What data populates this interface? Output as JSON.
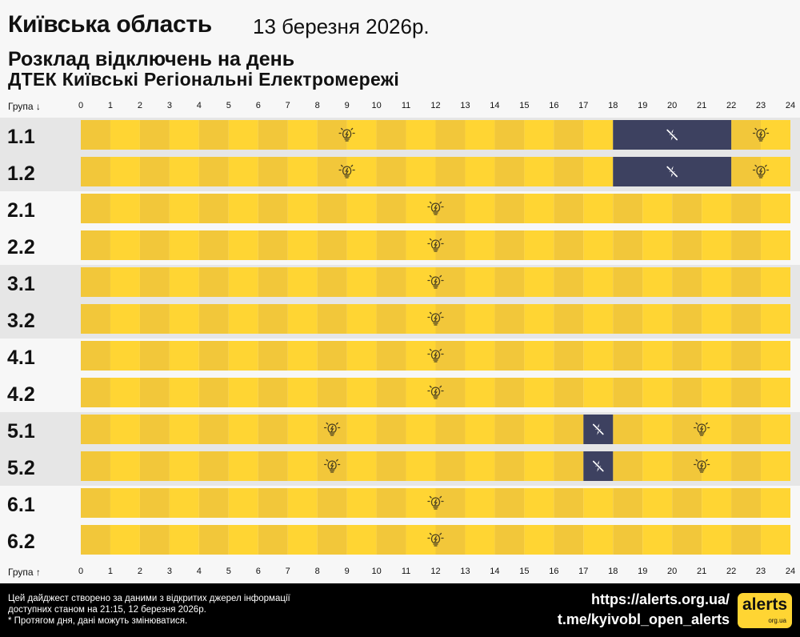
{
  "header": {
    "region": "Київська область",
    "date": "13 березня 2026р.",
    "subtitle": "Розклад відключень на день",
    "company": "ДТЕК Київські Регіональні Електромережі"
  },
  "axis": {
    "top_label": "Група ↓",
    "bottom_label": "Група ↑"
  },
  "colors": {
    "power_on": "#ffd533",
    "power_on_alt": "#f2c73a",
    "outage": "#3d4160",
    "row_bg_a": "#e6e6e6",
    "row_bg_b": "#f7f7f7"
  },
  "icons": {
    "power_on": "lightbulb-icon",
    "outage": "no-power-icon"
  },
  "chart_data": {
    "type": "timeline",
    "x_unit": "hour",
    "xlim": [
      0,
      24
    ],
    "ticks": [
      "0",
      "1",
      "2",
      "3",
      "4",
      "5",
      "6",
      "7",
      "8",
      "9",
      "10",
      "11",
      "12",
      "13",
      "14",
      "15",
      "16",
      "17",
      "18",
      "19",
      "20",
      "21",
      "22",
      "23",
      "24"
    ],
    "groups": [
      {
        "name": "1.1",
        "outages": [
          [
            18,
            22
          ]
        ]
      },
      {
        "name": "1.2",
        "outages": [
          [
            18,
            22
          ]
        ]
      },
      {
        "name": "2.1",
        "outages": []
      },
      {
        "name": "2.2",
        "outages": []
      },
      {
        "name": "3.1",
        "outages": []
      },
      {
        "name": "3.2",
        "outages": []
      },
      {
        "name": "4.1",
        "outages": []
      },
      {
        "name": "4.2",
        "outages": []
      },
      {
        "name": "5.1",
        "outages": [
          [
            17,
            18
          ]
        ]
      },
      {
        "name": "5.2",
        "outages": [
          [
            17,
            18
          ]
        ]
      },
      {
        "name": "6.1",
        "outages": []
      },
      {
        "name": "6.2",
        "outages": []
      }
    ]
  },
  "footer": {
    "note_line1": "Цей дайджест створено за даними з відкритих джерел інформації",
    "note_line2": "доступних станом на 21:15, 12 березня 2026р.",
    "note_line3": "* Протягом дня, дані можуть змінюватися.",
    "site": "https://alerts.org.ua/",
    "telegram": "t.me/kyivobl_open_alerts",
    "logo_main": "alerts",
    "logo_sub": "org.ua"
  }
}
